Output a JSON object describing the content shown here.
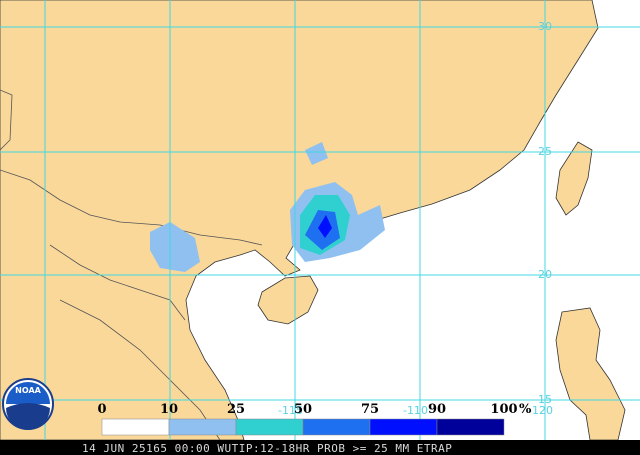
{
  "map": {
    "lat_labels": [
      "30",
      "25",
      "20",
      "15"
    ],
    "lon_labels": [
      "-115",
      "-110",
      "-120"
    ]
  },
  "legend": {
    "ticks": [
      "0",
      "10",
      "25",
      "50",
      "75",
      "90",
      "100"
    ],
    "unit": "%",
    "colors": [
      "#ffffff",
      "#90c0f0",
      "#30d0d0",
      "#1e70f0",
      "#0010ff",
      "#00009a"
    ]
  },
  "logo": "NOAA",
  "footer": "14 JUN 25165 00:00 WUTIP:12-18HR PROB >= 25 MM ETRAP"
}
